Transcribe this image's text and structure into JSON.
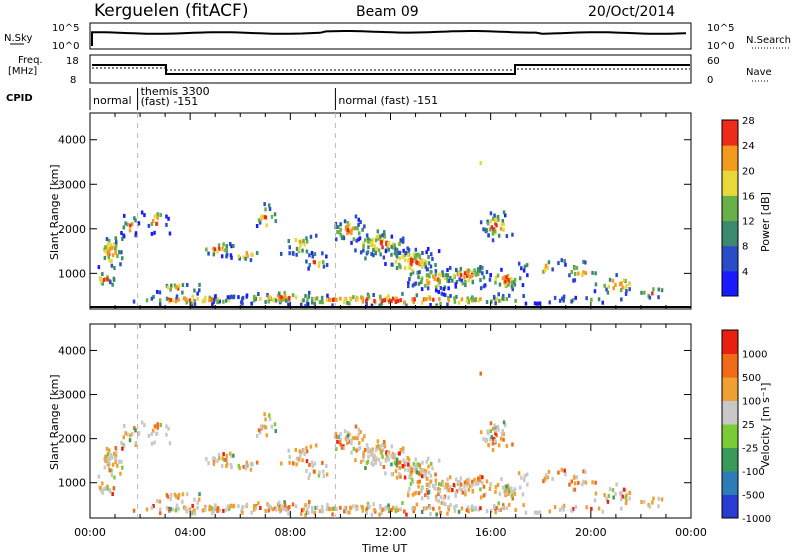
{
  "header": {
    "station": "Kerguelen (fitACF)",
    "beam": "Beam 09",
    "date": "20/Oct/2014"
  },
  "top_panels": {
    "nsky_label": "N.Sky",
    "nsky_ticks": [
      "10^5",
      "10^0"
    ],
    "nsearch_label": "N.Search",
    "nsearch_ticks": [
      "10^5",
      "10^0"
    ],
    "freq_label": "Freq.",
    "freq_unit": "[MHz]",
    "freq_ticks": [
      "18",
      "8"
    ],
    "nave_label": "Nave",
    "nave_ticks": [
      "60",
      "0"
    ],
    "cpid_label": "CPID",
    "cpid_segments": [
      {
        "label": "normal",
        "start_hr": 0.0,
        "end_hr": 1.9
      },
      {
        "label": "themis 3300 (fast) -151",
        "start_hr": 1.9,
        "end_hr": 9.8
      },
      {
        "label": "normal (fast) -151",
        "start_hr": 9.8,
        "end_hr": 24.0
      }
    ]
  },
  "chart_data": [
    {
      "type": "heatmap",
      "name": "power",
      "ylabel": "Slant Range [km]",
      "yticks": [
        1000,
        2000,
        3000,
        4000
      ],
      "ylim": [
        200,
        4600
      ],
      "xlim_hr": [
        0,
        24
      ],
      "colorbar": {
        "label": "Power [dB]",
        "ticks": [
          "4",
          "8",
          "12",
          "16",
          "20",
          "24",
          "28"
        ],
        "colors": [
          "#1a1aff",
          "#2a4cc7",
          "#3b8a6e",
          "#6ab04a",
          "#e8d83a",
          "#f39a1c",
          "#ee2a1a"
        ]
      }
    },
    {
      "type": "heatmap",
      "name": "velocity",
      "ylabel": "Slant Range [km]",
      "yticks": [
        1000,
        2000,
        3000,
        4000
      ],
      "ylim": [
        200,
        4600
      ],
      "xlim_hr": [
        0,
        24
      ],
      "xlabel": "Time UT",
      "xticks": [
        "00:00",
        "04:00",
        "08:00",
        "12:00",
        "16:00",
        "20:00",
        "00:00"
      ],
      "colorbar": {
        "label": "Velocity [m s⁻¹]",
        "ticks": [
          "1000",
          "500",
          "100",
          "25",
          "-25",
          "-100",
          "-500",
          "-1000"
        ],
        "colors": [
          "#2a3bd1",
          "#2f7db8",
          "#3a9a5a",
          "#7ccc3a",
          "#c8c8c8",
          "#f0a030",
          "#f06a18",
          "#e82012"
        ]
      }
    }
  ]
}
